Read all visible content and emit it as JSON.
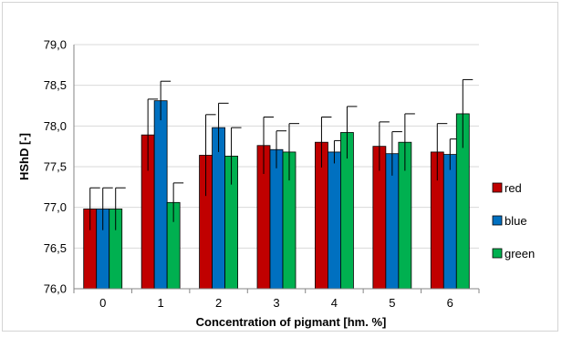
{
  "chart_data": {
    "type": "bar",
    "title": "",
    "xlabel": "Concentration of pigmant [hm. %]",
    "ylabel": "HShD [-]",
    "ylim": [
      76.0,
      79.0
    ],
    "ytick_step": 0.5,
    "ytick_labels": [
      "76,0",
      "76,5",
      "77,0",
      "77,5",
      "78,0",
      "78,5",
      "79,0"
    ],
    "categories": [
      "0",
      "1",
      "2",
      "3",
      "4",
      "5",
      "6"
    ],
    "grid": "horizontal",
    "legend_position": "right",
    "series": [
      {
        "name": "red",
        "color": "#c00000",
        "values": [
          76.98,
          77.89,
          77.64,
          77.76,
          77.8,
          77.75,
          77.68
        ],
        "errors": [
          0.26,
          0.44,
          0.5,
          0.35,
          0.31,
          0.3,
          0.35
        ]
      },
      {
        "name": "blue",
        "color": "#0070c0",
        "values": [
          76.98,
          78.31,
          77.98,
          77.71,
          77.68,
          77.66,
          77.65
        ],
        "errors": [
          0.26,
          0.24,
          0.3,
          0.23,
          0.14,
          0.27,
          0.19
        ]
      },
      {
        "name": "green",
        "color": "#00b050",
        "values": [
          76.98,
          77.06,
          77.63,
          77.68,
          77.92,
          77.8,
          78.15
        ],
        "errors": [
          0.26,
          0.24,
          0.35,
          0.35,
          0.32,
          0.35,
          0.42
        ]
      }
    ]
  }
}
